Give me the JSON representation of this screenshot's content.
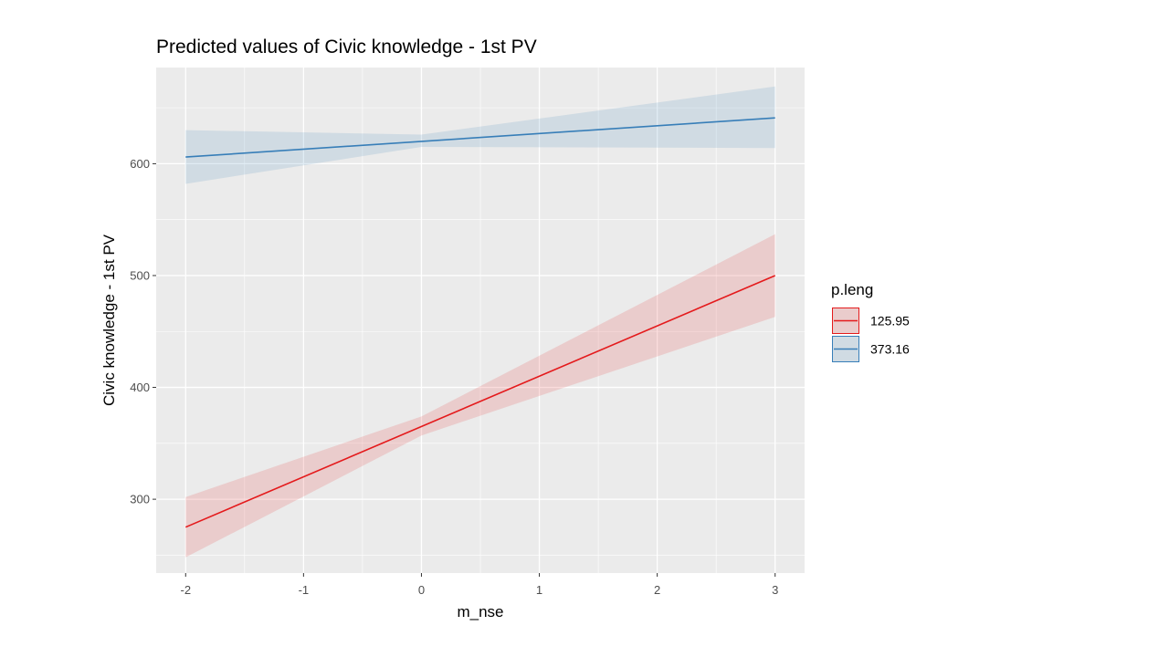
{
  "chart_data": {
    "type": "line",
    "title": "Predicted values of Civic knowledge - 1st PV",
    "xlabel": "m_nse",
    "ylabel": "Civic knowledge - 1st PV",
    "xlim": [
      -2.25,
      3.25
    ],
    "ylim": [
      234,
      686
    ],
    "x_ticks": [
      -2,
      -1,
      0,
      1,
      2,
      3
    ],
    "x_tick_labels": [
      "-2",
      "-1",
      "0",
      "1",
      "2",
      "3"
    ],
    "y_ticks": [
      300,
      400,
      500,
      600
    ],
    "y_tick_labels": [
      "300",
      "400",
      "500",
      "600"
    ],
    "grid": true,
    "legend": {
      "title": "p.leng",
      "position": "right"
    },
    "series": [
      {
        "name": "125.95",
        "color": "#e41a1c",
        "fill": "#e41a1c",
        "x": [
          -2,
          3
        ],
        "y": [
          275,
          500
        ],
        "ci_lower": [
          248,
          463
        ],
        "ci_upper": [
          302,
          537
        ],
        "ci_center_x": 0,
        "ci_center_lower": 357,
        "ci_center_upper": 374
      },
      {
        "name": "373.16",
        "color": "#377eb8",
        "fill": "#377eb8",
        "x": [
          -2,
          3
        ],
        "y": [
          606,
          641
        ],
        "ci_lower": [
          582,
          614
        ],
        "ci_upper": [
          630,
          669
        ],
        "ci_center_x": 0,
        "ci_center_lower": 615,
        "ci_center_upper": 626
      }
    ]
  }
}
